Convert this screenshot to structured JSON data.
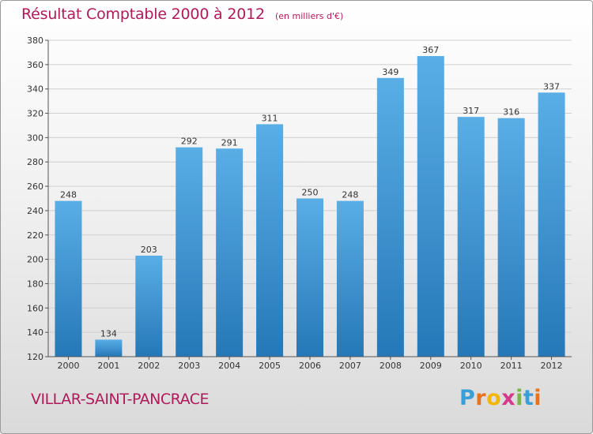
{
  "chart_data": {
    "type": "bar",
    "title": "Résultat Comptable 2000 à 2012",
    "subtitle": "(en milliers d'€)",
    "categories": [
      "2000",
      "2001",
      "2002",
      "2003",
      "2004",
      "2005",
      "2006",
      "2007",
      "2008",
      "2009",
      "2010",
      "2011",
      "2012"
    ],
    "values": [
      248,
      134,
      203,
      292,
      291,
      311,
      250,
      248,
      349,
      367,
      317,
      316,
      337
    ],
    "xlabel": "",
    "ylabel": "",
    "ylim": [
      120,
      380
    ],
    "yticks": [
      120,
      140,
      160,
      180,
      200,
      220,
      240,
      260,
      280,
      300,
      320,
      340,
      360,
      380
    ],
    "grid": true,
    "colors": {
      "bar_light": "#5aaee6",
      "bar_dark": "#2578b7",
      "grid": "#cfcfcf",
      "title": "#b01a5a"
    }
  },
  "commune": "VILLAR-SAINT-PANCRACE",
  "logo": {
    "letters": [
      "P",
      "r",
      "o",
      "x",
      "i",
      "t",
      "i"
    ],
    "colors": [
      "#3a9fd6",
      "#e8731c",
      "#f2b705",
      "#d33a8c",
      "#7ab648",
      "#3a9fd6",
      "#e8731c"
    ]
  }
}
